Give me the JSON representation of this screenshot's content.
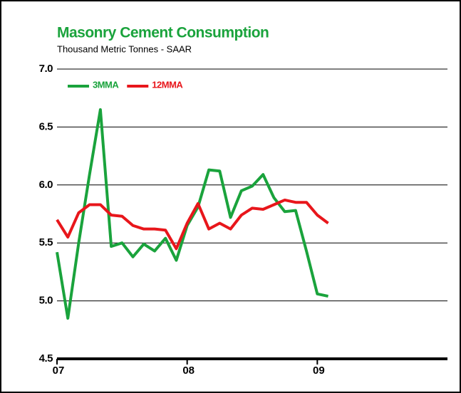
{
  "chart_data": {
    "type": "line",
    "title": "Masonry Cement Consumption",
    "subtitle": "Thousand Metric Tonnes - SAAR",
    "categories": [
      "07",
      null,
      null,
      null,
      null,
      null,
      null,
      null,
      null,
      null,
      null,
      null,
      "08",
      null,
      null,
      null,
      null,
      null,
      null,
      null,
      null,
      null,
      null,
      null,
      "09",
      null,
      null,
      null,
      null,
      null,
      null,
      null,
      null,
      null,
      null,
      null
    ],
    "series": [
      {
        "name": "3MMA",
        "color": "#1aa33c",
        "values": [
          5.42,
          4.85,
          5.5,
          6.09,
          6.65,
          5.47,
          5.5,
          5.38,
          5.49,
          5.43,
          5.54,
          5.35,
          5.65,
          5.81,
          6.13,
          6.12,
          5.72,
          5.95,
          5.99,
          6.09,
          5.89,
          5.77,
          5.78,
          5.43,
          5.06,
          5.04,
          null,
          null,
          null,
          null,
          null,
          null,
          null,
          null,
          null,
          null
        ]
      },
      {
        "name": "12MMA",
        "color": "#e8161b",
        "values": [
          5.7,
          5.55,
          5.76,
          5.83,
          5.83,
          5.74,
          5.73,
          5.65,
          5.62,
          5.62,
          5.61,
          5.45,
          5.67,
          5.84,
          5.62,
          5.67,
          5.62,
          5.74,
          5.8,
          5.79,
          5.83,
          5.87,
          5.85,
          5.85,
          5.74,
          5.67,
          null,
          null,
          null,
          null,
          null,
          null,
          null,
          null,
          null,
          null
        ]
      }
    ],
    "ylim": [
      4.5,
      7.0
    ],
    "yticks": [
      {
        "value": 4.5,
        "label": "4.5"
      },
      {
        "value": 5,
        "label": "5.0"
      },
      {
        "value": 5.5,
        "label": "5.5"
      },
      {
        "value": 6,
        "label": "6.0"
      },
      {
        "value": 6.5,
        "label": "6.5"
      },
      {
        "value": 7,
        "label": "7.0"
      }
    ],
    "grid": true
  }
}
